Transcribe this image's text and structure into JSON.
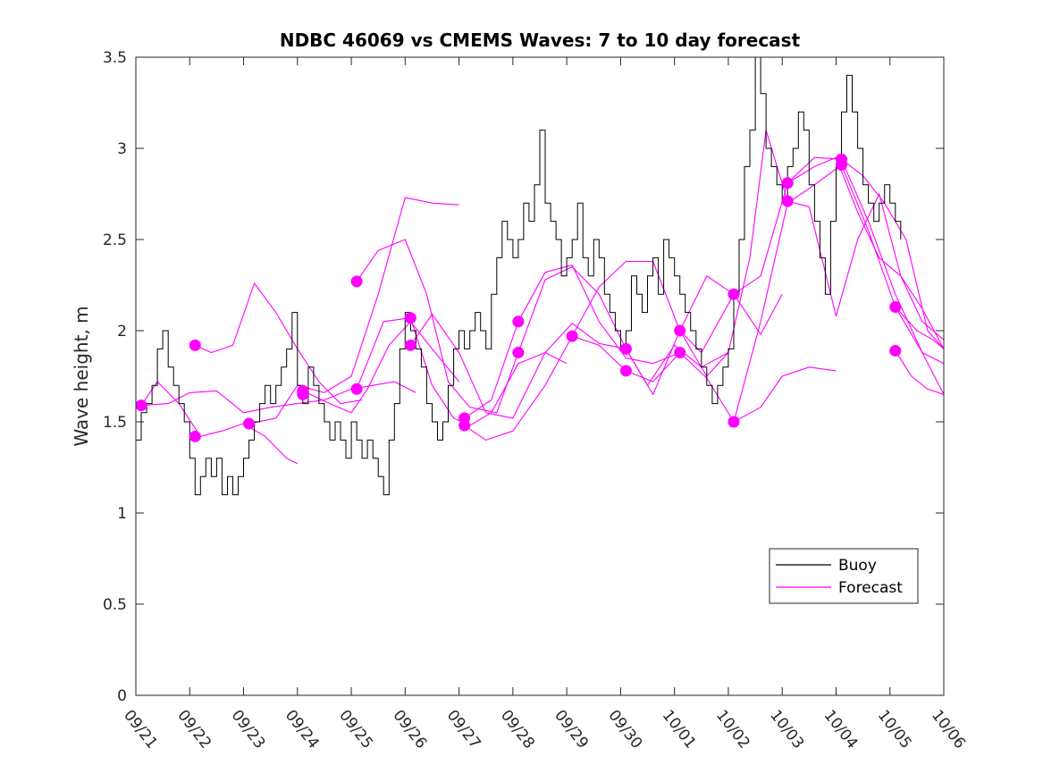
{
  "chart_data": {
    "type": "line",
    "title": "NDBC 46069 vs CMEMS Waves: 7 to 10 day forecast",
    "xlabel": "",
    "ylabel": "Wave height, m",
    "xlim": [
      0,
      15
    ],
    "ylim": [
      0,
      3.5
    ],
    "x_ticks": [
      {
        "value": 0,
        "label": "09/21"
      },
      {
        "value": 1,
        "label": "09/22"
      },
      {
        "value": 2,
        "label": "09/23"
      },
      {
        "value": 3,
        "label": "09/24"
      },
      {
        "value": 4,
        "label": "09/25"
      },
      {
        "value": 5,
        "label": "09/26"
      },
      {
        "value": 6,
        "label": "09/27"
      },
      {
        "value": 7,
        "label": "09/28"
      },
      {
        "value": 8,
        "label": "09/29"
      },
      {
        "value": 9,
        "label": "09/30"
      },
      {
        "value": 10,
        "label": "10/01"
      },
      {
        "value": 11,
        "label": "10/02"
      },
      {
        "value": 12,
        "label": "10/03"
      },
      {
        "value": 13,
        "label": "10/04"
      },
      {
        "value": 14,
        "label": "10/05"
      },
      {
        "value": 15,
        "label": "10/06"
      }
    ],
    "y_ticks": [
      {
        "value": 0,
        "label": "0"
      },
      {
        "value": 0.5,
        "label": "0.5"
      },
      {
        "value": 1,
        "label": "1"
      },
      {
        "value": 1.5,
        "label": "1.5"
      },
      {
        "value": 2,
        "label": "2"
      },
      {
        "value": 2.5,
        "label": "2.5"
      },
      {
        "value": 3,
        "label": "3"
      },
      {
        "value": 3.5,
        "label": "3.5"
      }
    ],
    "grid": false,
    "legend": {
      "position": "bottom-right",
      "entries": [
        "Buoy",
        "Forecast"
      ]
    },
    "colors": {
      "buoy": "#000000",
      "forecast": "#ff00ff"
    },
    "buoy": {
      "name": "Buoy",
      "x": [
        0,
        0.1,
        0.2,
        0.3,
        0.4,
        0.5,
        0.6,
        0.7,
        0.8,
        0.9,
        1.0,
        1.1,
        1.2,
        1.3,
        1.4,
        1.5,
        1.6,
        1.7,
        1.8,
        1.9,
        2.0,
        2.1,
        2.2,
        2.3,
        2.4,
        2.5,
        2.6,
        2.7,
        2.8,
        2.9,
        3.0,
        3.1,
        3.2,
        3.3,
        3.4,
        3.5,
        3.6,
        3.7,
        3.8,
        3.9,
        4.0,
        4.1,
        4.2,
        4.3,
        4.4,
        4.5,
        4.6,
        4.7,
        4.8,
        4.9,
        5.0,
        5.1,
        5.2,
        5.3,
        5.4,
        5.5,
        5.6,
        5.7,
        5.8,
        5.9,
        6.0,
        6.1,
        6.2,
        6.3,
        6.4,
        6.5,
        6.6,
        6.7,
        6.8,
        6.9,
        7.0,
        7.1,
        7.2,
        7.3,
        7.4,
        7.5,
        7.6,
        7.7,
        7.8,
        7.9,
        8.0,
        8.1,
        8.2,
        8.3,
        8.4,
        8.5,
        8.6,
        8.7,
        8.8,
        8.9,
        9.0,
        9.1,
        9.2,
        9.3,
        9.4,
        9.5,
        9.6,
        9.7,
        9.8,
        9.9,
        10.0,
        10.1,
        10.2,
        10.3,
        10.4,
        10.5,
        10.6,
        10.7,
        10.8,
        10.9,
        11.0,
        11.1,
        11.2,
        11.3,
        11.4,
        11.5,
        11.6,
        11.7,
        11.8,
        11.9,
        12.0,
        12.1,
        12.2,
        12.3,
        12.4,
        12.5,
        12.6,
        12.7,
        12.8,
        12.9,
        13.0,
        13.1,
        13.2,
        13.3,
        13.4,
        13.5,
        13.6,
        13.7,
        13.8,
        13.9,
        14.0,
        14.1,
        14.2
      ],
      "values": [
        1.4,
        1.55,
        1.6,
        1.7,
        1.9,
        2.0,
        1.8,
        1.7,
        1.6,
        1.5,
        1.3,
        1.1,
        1.2,
        1.3,
        1.2,
        1.3,
        1.1,
        1.2,
        1.1,
        1.2,
        1.3,
        1.4,
        1.5,
        1.6,
        1.7,
        1.6,
        1.7,
        1.8,
        1.9,
        2.1,
        1.7,
        1.6,
        1.8,
        1.7,
        1.6,
        1.5,
        1.4,
        1.5,
        1.4,
        1.3,
        1.5,
        1.4,
        1.3,
        1.4,
        1.3,
        1.2,
        1.1,
        1.4,
        1.6,
        1.9,
        2.1,
        2.0,
        1.9,
        1.8,
        1.6,
        1.5,
        1.4,
        1.5,
        1.7,
        1.9,
        2.0,
        1.9,
        2.0,
        2.1,
        2.0,
        1.9,
        2.2,
        2.4,
        2.6,
        2.5,
        2.4,
        2.5,
        2.7,
        2.6,
        2.8,
        3.1,
        2.7,
        2.6,
        2.5,
        2.3,
        2.4,
        2.5,
        2.7,
        2.4,
        2.3,
        2.5,
        2.4,
        2.2,
        2.1,
        2.0,
        1.9,
        2.0,
        2.3,
        2.2,
        2.1,
        2.3,
        2.4,
        2.2,
        2.5,
        2.4,
        2.3,
        2.2,
        2.1,
        2.0,
        1.9,
        1.8,
        1.7,
        1.6,
        1.7,
        1.8,
        1.9,
        2.2,
        2.5,
        2.9,
        3.1,
        3.5,
        3.3,
        3.0,
        2.9,
        2.8,
        2.7,
        2.9,
        3.0,
        3.2,
        3.1,
        2.8,
        2.6,
        2.4,
        2.2,
        2.6,
        2.9,
        3.2,
        3.4,
        3.2,
        3.0,
        2.8,
        2.7,
        2.6,
        2.7,
        2.8,
        2.7,
        2.6,
        2.5
      ]
    },
    "forecasts": [
      {
        "name": "Forecast",
        "x": [
          0.1,
          0.4,
          0.8,
          1.2,
          1.6,
          2.0,
          2.4,
          2.8,
          3.0
        ],
        "values": [
          1.59,
          1.72,
          1.6,
          1.42,
          1.45,
          1.49,
          1.42,
          1.3,
          1.27
        ]
      },
      {
        "name": "Forecast",
        "x": [
          1.1,
          1.4,
          1.8,
          2.2,
          2.6,
          3.0,
          3.4,
          3.8,
          4.2
        ],
        "values": [
          1.92,
          1.88,
          1.92,
          2.26,
          2.1,
          1.9,
          1.72,
          1.6,
          1.62
        ]
      },
      {
        "name": "Forecast",
        "x": [
          0.1,
          0.6,
          1.0,
          1.5,
          2.0,
          2.5,
          3.0,
          3.5,
          4.0,
          4.4,
          4.8,
          5.2
        ],
        "values": [
          1.59,
          1.6,
          1.66,
          1.67,
          1.55,
          1.58,
          1.6,
          1.62,
          1.68,
          1.7,
          1.72,
          1.66
        ]
      },
      {
        "name": "Forecast",
        "x": [
          2.1,
          2.6,
          3.0,
          3.5,
          4.0,
          4.5,
          5.0,
          5.5,
          6.0
        ],
        "values": [
          1.49,
          1.52,
          1.7,
          1.66,
          1.75,
          2.2,
          2.73,
          2.7,
          2.69
        ]
      },
      {
        "name": "Forecast",
        "x": [
          3.1,
          3.6,
          4.0,
          4.3,
          4.7,
          5.1,
          5.5,
          6.0
        ],
        "values": [
          1.67,
          1.6,
          1.55,
          1.68,
          1.92,
          2.05,
          1.9,
          1.72
        ]
      },
      {
        "name": "Forecast",
        "x": [
          4.1,
          4.5,
          5.0,
          5.4,
          5.8,
          6.2,
          6.7,
          7.1
        ],
        "values": [
          2.27,
          2.44,
          2.5,
          2.2,
          1.72,
          1.58,
          1.55,
          1.88
        ]
      },
      {
        "name": "Forecast",
        "x": [
          4.1,
          4.6,
          5.1,
          5.5,
          5.9,
          6.2,
          6.6,
          7.1,
          7.6,
          8.0
        ],
        "values": [
          1.68,
          2.05,
          2.07,
          1.7,
          1.52,
          1.48,
          1.55,
          1.82,
          1.88,
          1.82
        ]
      },
      {
        "name": "Forecast",
        "x": [
          5.1,
          5.5,
          6.0,
          6.5,
          7.0,
          7.6,
          8.1,
          8.6,
          9.1
        ],
        "values": [
          1.92,
          2.09,
          1.88,
          1.55,
          1.52,
          1.88,
          2.04,
          1.93,
          1.9
        ]
      },
      {
        "name": "Forecast",
        "x": [
          6.1,
          6.6,
          7.1,
          7.6,
          8.1,
          8.6,
          9.1,
          9.6,
          10.1
        ],
        "values": [
          1.52,
          1.62,
          2.05,
          2.32,
          2.36,
          2.05,
          1.85,
          1.82,
          1.88
        ]
      },
      {
        "name": "Forecast",
        "x": [
          6.1,
          6.5,
          7.0,
          7.6,
          8.1,
          8.6,
          9.1,
          9.6,
          10.1,
          10.6,
          11.0
        ],
        "values": [
          1.48,
          1.4,
          1.45,
          1.7,
          1.97,
          2.24,
          2.38,
          2.38,
          2.0,
          1.75,
          1.88
        ]
      },
      {
        "name": "Forecast",
        "x": [
          7.1,
          7.6,
          8.1,
          8.6,
          9.1,
          9.6,
          10.1,
          10.6,
          11.1,
          11.6,
          12.0
        ],
        "values": [
          1.88,
          2.28,
          2.35,
          2.2,
          1.9,
          1.65,
          2.0,
          2.3,
          2.2,
          1.98,
          2.2
        ]
      },
      {
        "name": "Forecast",
        "x": [
          8.1,
          8.6,
          9.1,
          9.6,
          10.1,
          10.6,
          11.1,
          11.6,
          12.0,
          12.5,
          13.0
        ],
        "values": [
          1.97,
          1.92,
          1.78,
          1.72,
          1.88,
          1.74,
          1.5,
          1.58,
          1.75,
          1.8,
          1.78
        ]
      },
      {
        "name": "Forecast",
        "x": [
          9.1,
          9.5,
          10.0,
          10.5,
          11.0,
          11.4,
          11.7,
          12.1,
          12.5,
          13.0,
          13.4,
          13.8,
          14.2,
          14.6,
          15.0
        ],
        "values": [
          1.9,
          1.7,
          1.92,
          1.8,
          1.88,
          2.4,
          3.1,
          2.71,
          2.68,
          2.08,
          2.5,
          2.75,
          2.3,
          2.12,
          1.9
        ]
      },
      {
        "name": "Forecast",
        "x": [
          10.1,
          10.5,
          11.1,
          11.6,
          12.1,
          12.6,
          13.1,
          13.6,
          14.1,
          14.6,
          15.0
        ],
        "values": [
          2.0,
          1.88,
          2.2,
          2.3,
          2.81,
          2.95,
          2.94,
          2.6,
          2.2,
          1.88,
          1.82
        ]
      },
      {
        "name": "Forecast",
        "x": [
          11.1,
          11.6,
          12.1,
          12.6,
          13.1,
          13.6,
          14.1,
          14.6,
          15.0
        ],
        "values": [
          1.5,
          2.05,
          2.7,
          2.8,
          2.91,
          2.55,
          2.13,
          1.88,
          1.65
        ]
      },
      {
        "name": "Forecast",
        "x": [
          12.1,
          12.6,
          13.0,
          13.4,
          13.8,
          14.2,
          14.6,
          15.0
        ],
        "values": [
          2.81,
          2.9,
          2.95,
          2.65,
          2.4,
          2.3,
          2.05,
          1.95
        ]
      },
      {
        "name": "Forecast",
        "x": [
          13.1,
          13.5,
          13.9,
          14.3,
          14.7,
          15.0
        ],
        "values": [
          2.94,
          2.85,
          2.7,
          2.5,
          2.0,
          1.9
        ]
      },
      {
        "name": "Forecast",
        "x": [
          14.1,
          14.5,
          14.8,
          15.0
        ],
        "values": [
          2.13,
          2.0,
          1.95,
          1.9
        ]
      },
      {
        "name": "Forecast",
        "x": [
          14.1,
          14.4,
          14.7,
          15.0
        ],
        "values": [
          1.89,
          1.75,
          1.68,
          1.65
        ]
      }
    ],
    "forecast_starts": [
      {
        "x": 0.1,
        "y": 1.59
      },
      {
        "x": 1.1,
        "y": 1.92
      },
      {
        "x": 1.1,
        "y": 1.42
      },
      {
        "x": 2.1,
        "y": 1.49
      },
      {
        "x": 3.1,
        "y": 1.67
      },
      {
        "x": 3.1,
        "y": 1.65
      },
      {
        "x": 4.1,
        "y": 2.27
      },
      {
        "x": 4.1,
        "y": 1.68
      },
      {
        "x": 5.1,
        "y": 2.07
      },
      {
        "x": 5.1,
        "y": 1.92
      },
      {
        "x": 6.1,
        "y": 1.52
      },
      {
        "x": 6.1,
        "y": 1.48
      },
      {
        "x": 7.1,
        "y": 2.05
      },
      {
        "x": 7.1,
        "y": 1.88
      },
      {
        "x": 8.1,
        "y": 1.97
      },
      {
        "x": 9.1,
        "y": 1.9
      },
      {
        "x": 9.1,
        "y": 1.78
      },
      {
        "x": 10.1,
        "y": 2.0
      },
      {
        "x": 10.1,
        "y": 1.88
      },
      {
        "x": 11.1,
        "y": 2.2
      },
      {
        "x": 11.1,
        "y": 1.5
      },
      {
        "x": 12.1,
        "y": 2.81
      },
      {
        "x": 12.1,
        "y": 2.71
      },
      {
        "x": 13.1,
        "y": 2.94
      },
      {
        "x": 13.1,
        "y": 2.91
      },
      {
        "x": 14.1,
        "y": 2.13
      },
      {
        "x": 14.1,
        "y": 1.89
      }
    ]
  }
}
